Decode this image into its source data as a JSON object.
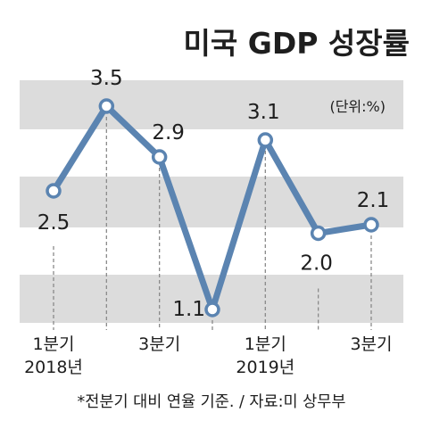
{
  "chart_data": {
    "type": "line",
    "title": "미국 GDP 성장률",
    "unit_label": "(단위:%)",
    "xlabel": "",
    "ylabel": "",
    "x": [
      1,
      2,
      3,
      4,
      5,
      6,
      7
    ],
    "values": [
      2.5,
      3.5,
      2.9,
      1.1,
      3.1,
      2.0,
      2.1
    ],
    "value_labels": [
      "2.5",
      "3.5",
      "2.9",
      "1.1",
      "3.1",
      "2.0",
      "2.1"
    ],
    "x_tick_labels": [
      {
        "x": 1,
        "line1": "1분기",
        "line2": "2018년"
      },
      {
        "x": 3,
        "line1": "3분기",
        "line2": ""
      },
      {
        "x": 5,
        "line1": "1분기",
        "line2": "2019년"
      },
      {
        "x": 7,
        "line1": "3분기",
        "line2": ""
      }
    ],
    "footnote": "*전분기 대비 연율 기준. / 자료:미 상무부",
    "grid": "alternating horizontal bands",
    "colors": {
      "line": "#5b84b1",
      "marker_fill": "#ffffff",
      "band": "#dcdcdc",
      "text": "#1e1e1e",
      "dashed": "#8a8a8a"
    }
  }
}
